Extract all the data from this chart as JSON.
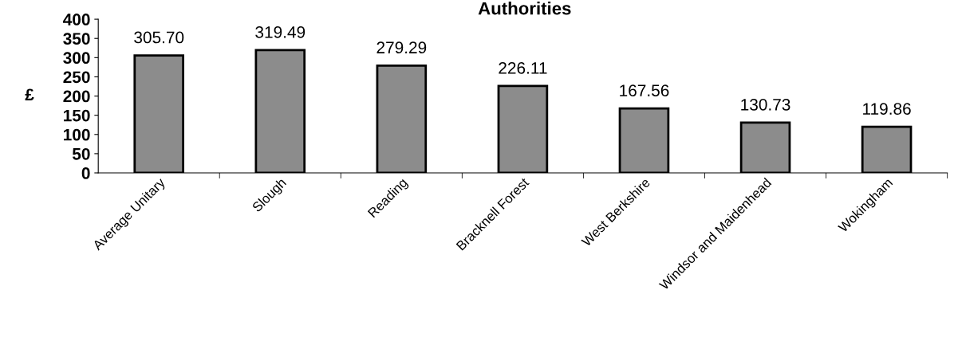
{
  "chart_data": {
    "type": "bar",
    "title": "Authorities",
    "ylabel": "£",
    "categories": [
      "Average Unitary",
      "Slough",
      "Reading",
      "Bracknell Forest",
      "West Berkshire",
      "Windsor and Maidenhead",
      "Wokingham"
    ],
    "values": [
      305.7,
      319.49,
      279.29,
      226.11,
      167.56,
      130.73,
      119.86
    ],
    "value_labels": [
      "305.70",
      "319.49",
      "279.29",
      "226.11",
      "167.56",
      "130.73",
      "119.86"
    ],
    "color": "#8c8c8c",
    "ylim": [
      0,
      400
    ],
    "yticks": [
      0,
      50,
      100,
      150,
      200,
      250,
      300,
      350,
      400
    ],
    "grid": false
  }
}
